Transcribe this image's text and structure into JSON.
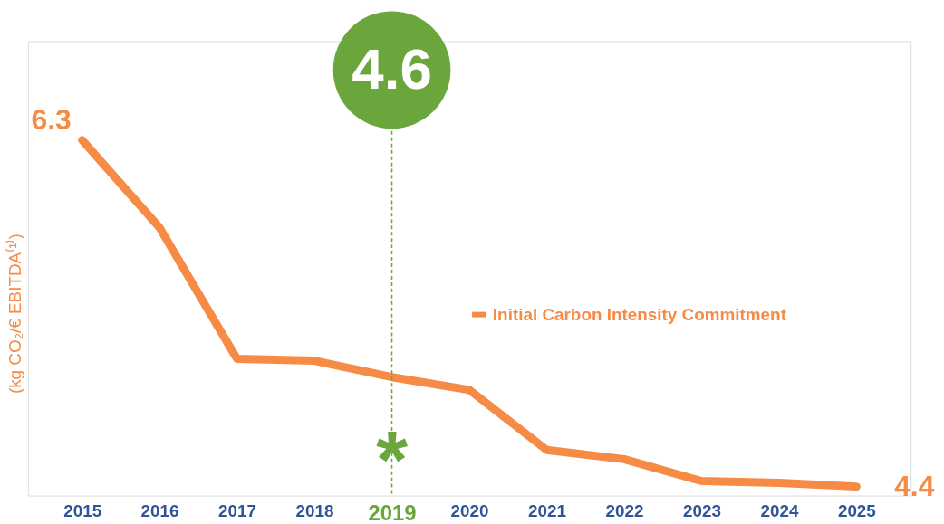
{
  "chart_data": {
    "type": "line",
    "ylabel": "(kg CO₂/€ EBITDA⁽¹⁾)",
    "categories": [
      "2015",
      "2016",
      "2017",
      "2018",
      "2019",
      "2020",
      "2021",
      "2022",
      "2023",
      "2024",
      "2025"
    ],
    "series": [
      {
        "name": "Initial Carbon Intensity Commitment",
        "color": "#f58b45",
        "values": [
          6.3,
          5.82,
          5.1,
          5.09,
          5.0,
          4.93,
          4.6,
          4.55,
          4.43,
          4.42,
          4.4
        ],
        "value_labels": [
          "6.3",
          null,
          null,
          null,
          null,
          null,
          null,
          null,
          null,
          null,
          "4.4"
        ]
      }
    ],
    "ref_lines": [
      {
        "axis": "x",
        "value": "2019",
        "label": "4.6",
        "color": "#6aa63b",
        "line_style": "dashed"
      }
    ],
    "annotations": [
      {
        "text": "*",
        "x": "2019",
        "y": 4.64
      }
    ],
    "legend": "right",
    "grid": false
  }
}
